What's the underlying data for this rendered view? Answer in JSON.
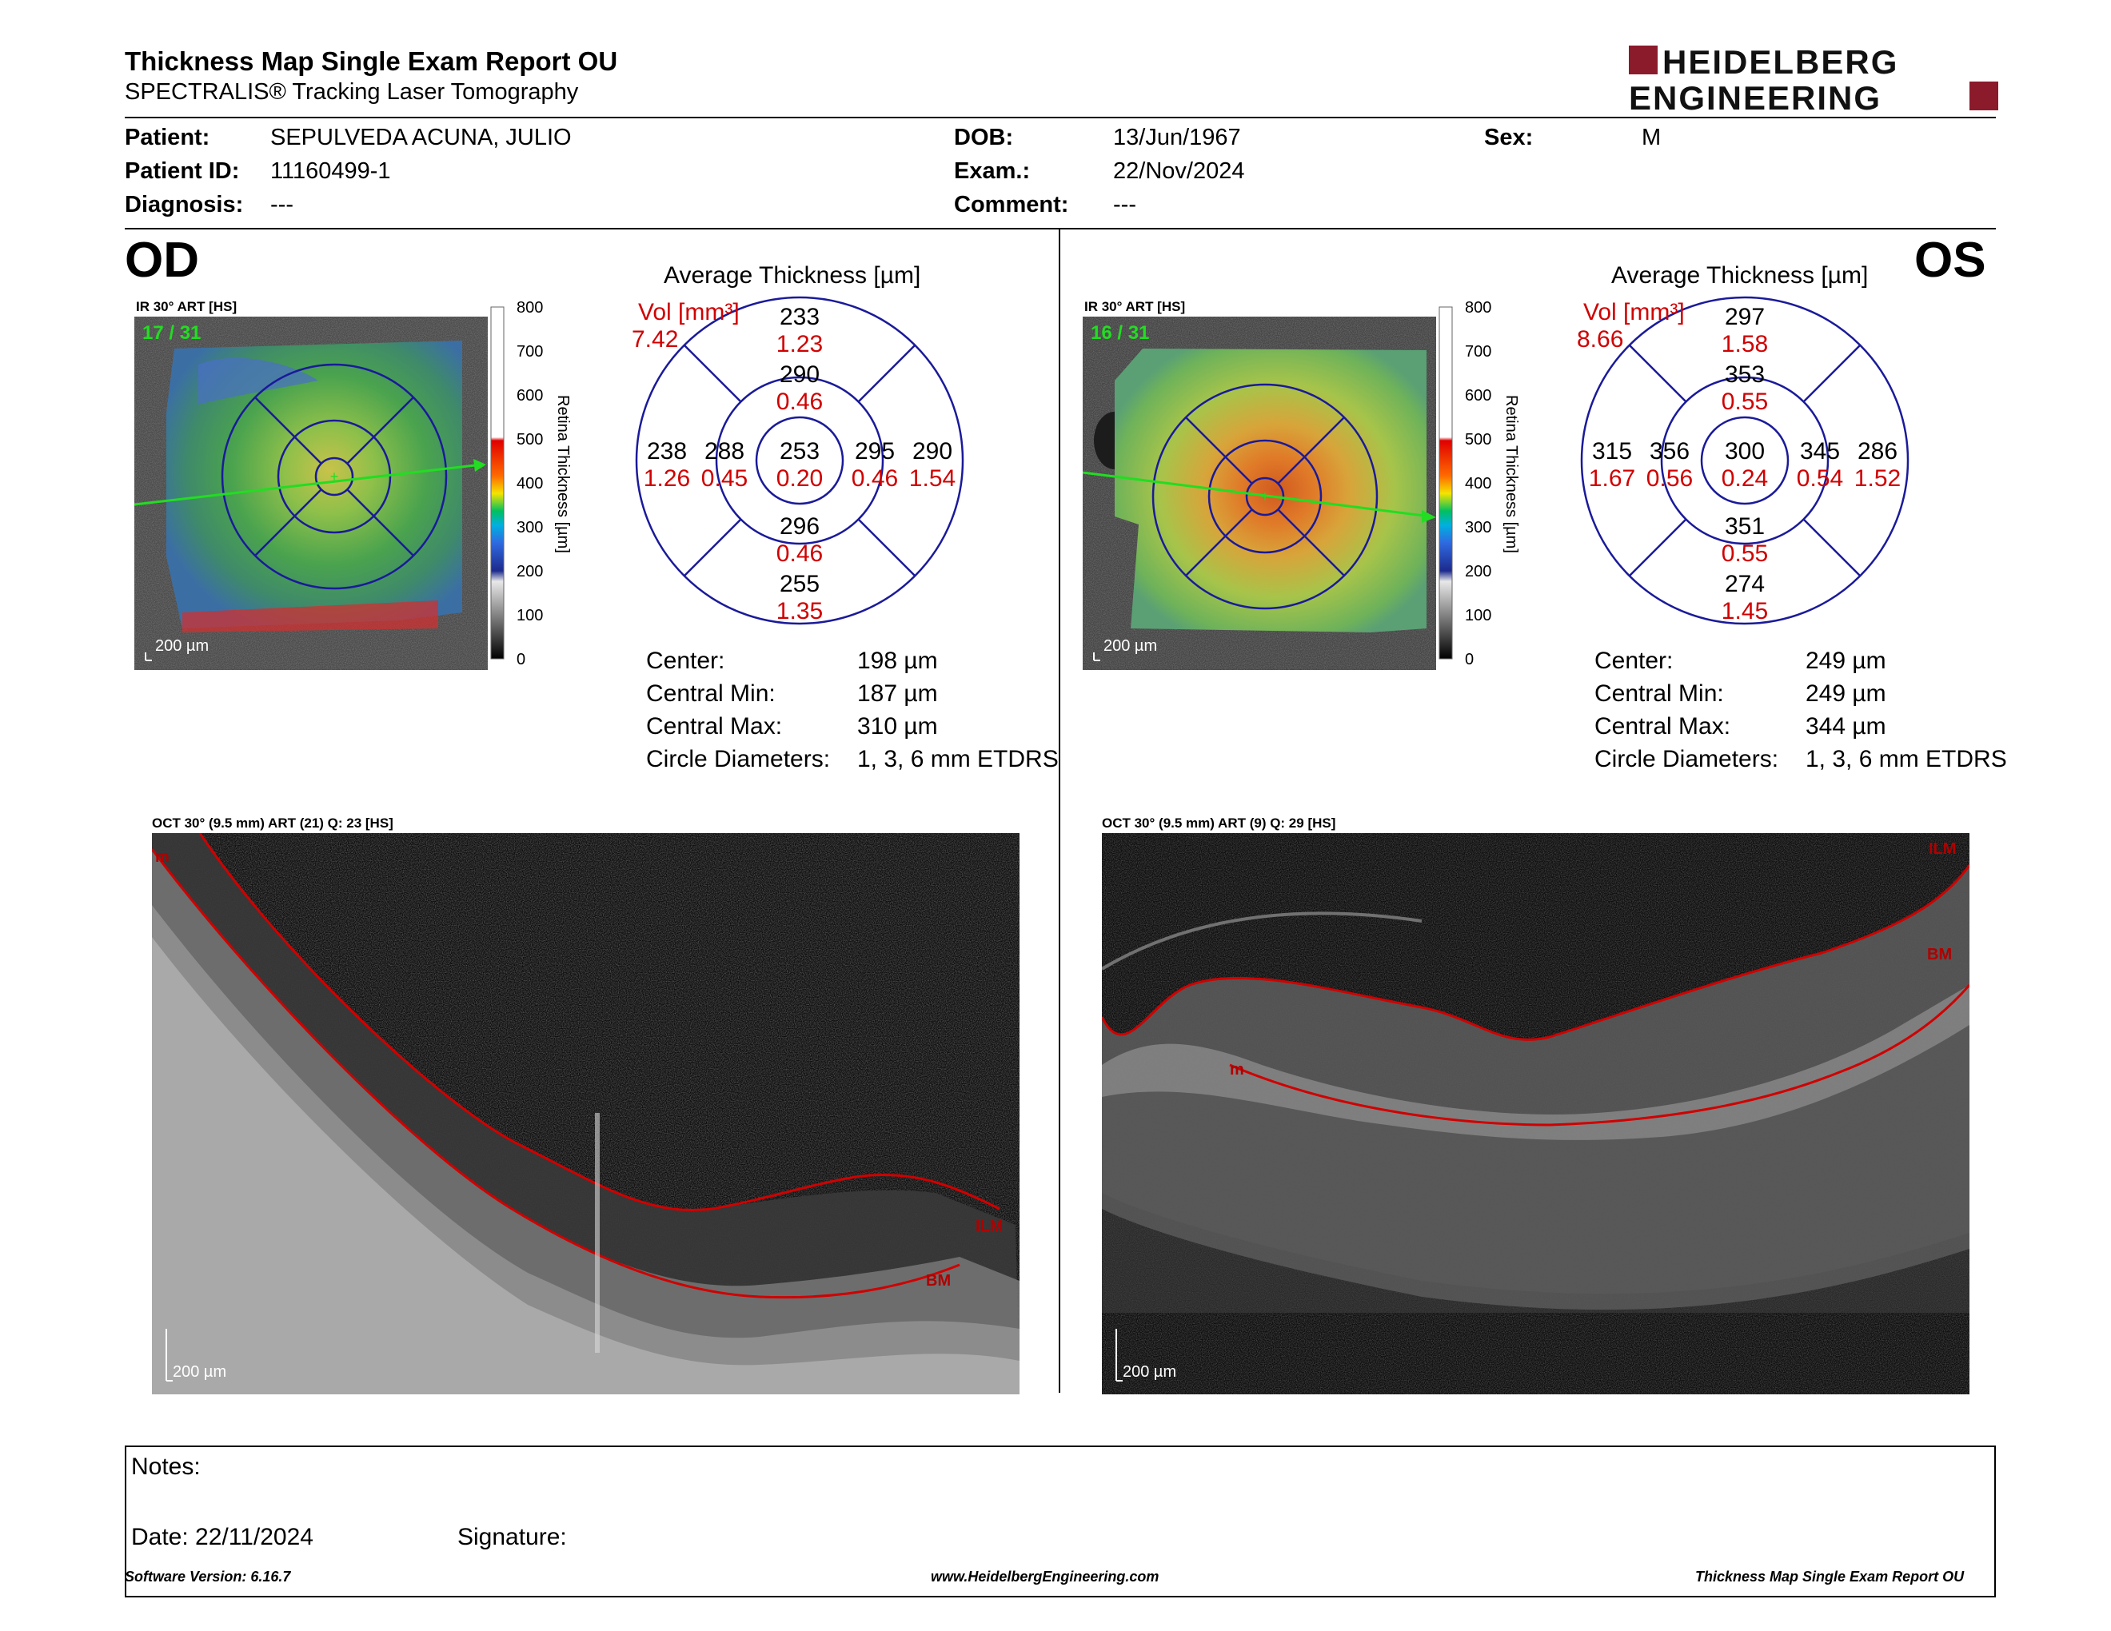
{
  "report": {
    "title": "Thickness Map Single Exam Report OU",
    "subtitle": "SPECTRALIS® Tracking Laser Tomography",
    "logo_line1": "HEIDELBERG",
    "logo_line2": "ENGINEERING"
  },
  "patient": {
    "patient_label": "Patient:",
    "patient_value": "SEPULVEDA ACUNA, JULIO",
    "id_label": "Patient ID:",
    "id_value": "11160499-1",
    "diagnosis_label": "Diagnosis:",
    "diagnosis_value": "---",
    "dob_label": "DOB:",
    "dob_value": "13/Jun/1967",
    "exam_label": "Exam.:",
    "exam_value": "22/Nov/2024",
    "comment_label": "Comment:",
    "comment_value": "---",
    "sex_label": "Sex:",
    "sex_value": "M"
  },
  "od": {
    "eye_label": "OD",
    "ir_caption": "IR 30° ART [HS]",
    "frames": "17 / 31",
    "scale": "200 µm",
    "oct_caption": "OCT 30° (9.5 mm) ART (21) Q: 23 [HS]",
    "oct_scale": "200 µm",
    "labels": {
      "ilm": "ILM",
      "bm": "BM",
      "m": "m"
    },
    "etdrs": {
      "title": "Average Thickness [µm]",
      "vol_label": "Vol [mm³]",
      "vol_value": "7.42",
      "center": {
        "t": "253",
        "v": "0.20"
      },
      "inner_sup": {
        "t": "290",
        "v": "0.46"
      },
      "inner_inf": {
        "t": "296",
        "v": "0.46"
      },
      "inner_left": {
        "t": "288",
        "v": "0.45"
      },
      "inner_right": {
        "t": "295",
        "v": "0.46"
      },
      "outer_sup": {
        "t": "233",
        "v": "1.23"
      },
      "outer_inf": {
        "t": "255",
        "v": "1.35"
      },
      "outer_left": {
        "t": "238",
        "v": "1.26"
      },
      "outer_right": {
        "t": "290",
        "v": "1.54"
      }
    },
    "stats": [
      {
        "label": "Center:",
        "value": "198 µm"
      },
      {
        "label": "Central Min:",
        "value": "187 µm"
      },
      {
        "label": "Central Max:",
        "value": "310 µm"
      },
      {
        "label": "Circle Diameters:",
        "value": "1, 3, 6 mm ETDRS"
      }
    ]
  },
  "os": {
    "eye_label": "OS",
    "ir_caption": "IR 30° ART [HS]",
    "frames": "16 / 31",
    "scale": "200 µm",
    "oct_caption": "OCT 30° (9.5 mm) ART (9) Q: 29 [HS]",
    "oct_scale": "200 µm",
    "labels": {
      "ilm": "ILM",
      "bm": "BM",
      "m": "m"
    },
    "etdrs": {
      "title": "Average Thickness [µm]",
      "vol_label": "Vol [mm³]",
      "vol_value": "8.66",
      "center": {
        "t": "300",
        "v": "0.24"
      },
      "inner_sup": {
        "t": "353",
        "v": "0.55"
      },
      "inner_inf": {
        "t": "351",
        "v": "0.55"
      },
      "inner_left": {
        "t": "356",
        "v": "0.56"
      },
      "inner_right": {
        "t": "345",
        "v": "0.54"
      },
      "outer_sup": {
        "t": "297",
        "v": "1.58"
      },
      "outer_inf": {
        "t": "274",
        "v": "1.45"
      },
      "outer_left": {
        "t": "315",
        "v": "1.67"
      },
      "outer_right": {
        "t": "286",
        "v": "1.52"
      }
    },
    "stats": [
      {
        "label": "Center:",
        "value": "249 µm"
      },
      {
        "label": "Central Min:",
        "value": "249 µm"
      },
      {
        "label": "Central Max:",
        "value": "344 µm"
      },
      {
        "label": "Circle Diameters:",
        "value": "1, 3, 6 mm ETDRS"
      }
    ]
  },
  "colorbar": {
    "ticks": [
      "800",
      "700",
      "600",
      "500",
      "400",
      "300",
      "200",
      "100",
      "0"
    ],
    "label": "Retina Thickness [µm]"
  },
  "notes": {
    "notes_label": "Notes:",
    "date_label": "Date: 22/11/2024",
    "signature_label": "Signature:"
  },
  "footer": {
    "software": "Software Version: 6.16.7",
    "website": "www.HeidelbergEngineering.com",
    "report_name": "Thickness Map Single Exam Report OU"
  }
}
